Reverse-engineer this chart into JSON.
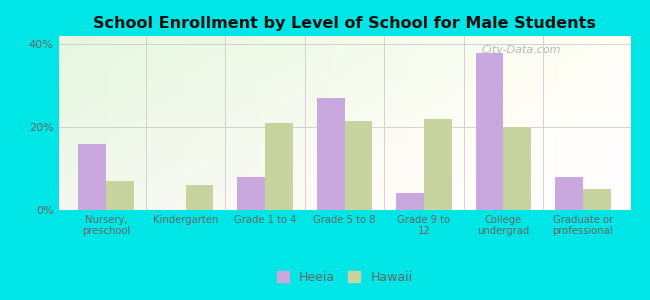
{
  "title": "School Enrollment by Level of School for Male Students",
  "categories": [
    "Nursery,\npreschool",
    "Kindergarten",
    "Grade 1 to 4",
    "Grade 5 to 8",
    "Grade 9 to\n12",
    "College\nundergrad",
    "Graduate or\nprofessional"
  ],
  "heeia_values": [
    16.0,
    0.0,
    8.0,
    27.0,
    4.0,
    38.0,
    8.0
  ],
  "hawaii_values": [
    7.0,
    6.0,
    21.0,
    21.5,
    22.0,
    20.0,
    5.0
  ],
  "heeia_color": "#c9a8e0",
  "hawaii_color": "#c8d4a0",
  "ylim": [
    0,
    42
  ],
  "yticks": [
    0,
    20,
    40
  ],
  "ytick_labels": [
    "0%",
    "20%",
    "40%"
  ],
  "bar_width": 0.35,
  "legend_labels": [
    "Heeia",
    "Hawaii"
  ],
  "watermark": "City-Data.com",
  "outer_bg": "#00e5e5",
  "tick_color": "#666666",
  "title_color": "#111111"
}
